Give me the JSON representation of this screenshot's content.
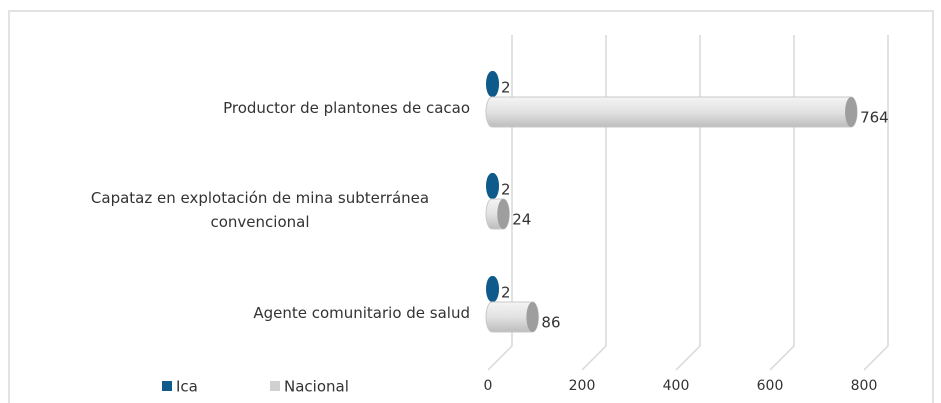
{
  "chart_data": {
    "type": "bar",
    "categories": [
      "Productor de plantones de cacao",
      "Capataz en explotación de mina subterránea convencional",
      "Agente comunitario de salud"
    ],
    "series": [
      {
        "name": "Ica",
        "color": "#0e5a8a",
        "values": [
          2,
          2,
          2
        ]
      },
      {
        "name": "Nacional",
        "color": "#d9d9d9",
        "values": [
          764,
          24,
          86
        ]
      }
    ],
    "xlim": [
      0,
      800
    ],
    "xticks": [
      0,
      200,
      400,
      600,
      800
    ],
    "grid": true,
    "legend": "bottom-left"
  }
}
